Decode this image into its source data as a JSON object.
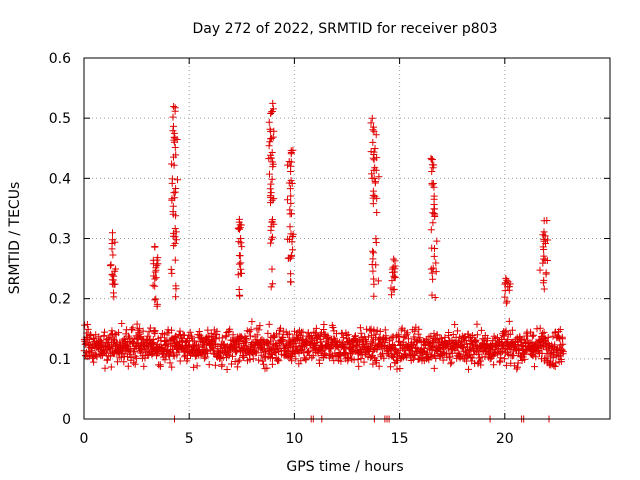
{
  "chart_data": {
    "type": "scatter",
    "title": "Day 272 of 2022, SRMTID for receiver p803",
    "xlabel": "GPS time / hours",
    "ylabel": "SRMTID / TECUs",
    "xlim": [
      0,
      25
    ],
    "ylim": [
      0,
      0.6
    ],
    "xticks": [
      "0",
      "5",
      "10",
      "15",
      "20"
    ],
    "xtick_values": [
      0,
      5,
      10,
      15,
      20
    ],
    "yticks": [
      "0",
      "0.1",
      "0.2",
      "0.3",
      "0.4",
      "0.5",
      "0.6"
    ],
    "ytick_values": [
      0,
      0.1,
      0.2,
      0.3,
      0.4,
      0.5,
      0.6
    ],
    "grid": true,
    "marker": "plus",
    "series_color": "#e00000",
    "x_range_hours": [
      0,
      22.8
    ],
    "baseline": 0.12,
    "bursts": [
      {
        "t": 1.4,
        "min": 0.2,
        "max": 0.31
      },
      {
        "t": 3.4,
        "min": 0.18,
        "max": 0.29
      },
      {
        "t": 4.3,
        "min": 0.2,
        "max": 0.525
      },
      {
        "t": 7.4,
        "min": 0.2,
        "max": 0.34
      },
      {
        "t": 8.9,
        "min": 0.2,
        "max": 0.525
      },
      {
        "t": 9.8,
        "min": 0.2,
        "max": 0.45
      },
      {
        "t": 13.8,
        "min": 0.2,
        "max": 0.505
      },
      {
        "t": 14.7,
        "min": 0.2,
        "max": 0.27
      },
      {
        "t": 16.6,
        "min": 0.2,
        "max": 0.435
      },
      {
        "t": 20.1,
        "min": 0.19,
        "max": 0.235
      },
      {
        "t": 21.9,
        "min": 0.2,
        "max": 0.33
      }
    ],
    "zero_points": [
      4.3,
      10.8,
      10.9,
      11.3,
      13.8,
      14.3,
      14.4,
      14.5,
      19.3,
      20.8,
      20.9,
      22.1
    ]
  }
}
